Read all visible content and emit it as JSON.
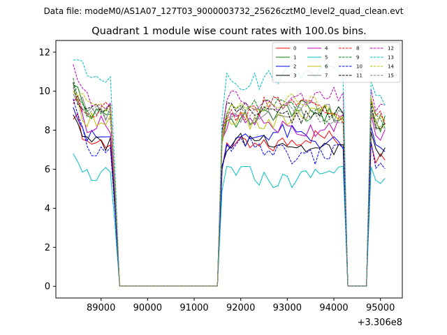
{
  "suptitle": "Data file: modeM0/AS1A07_127T03_9000003732_25626cztM0_level2_quad_clean.evt",
  "chart_data": {
    "type": "line",
    "title": "Quadrant 1 module wise count rates with 100.0s bins.",
    "xlabel": "",
    "ylabel": "",
    "x_offset_label": "+3.306e8",
    "xlim": [
      88030,
      95470
    ],
    "ylim": [
      -0.6,
      12.6
    ],
    "xticks": [
      89000,
      90000,
      91000,
      92000,
      93000,
      94000,
      95000
    ],
    "yticks": [
      0,
      2,
      4,
      6,
      8,
      10,
      12
    ],
    "grid": false,
    "legend_position": "top-right",
    "series": [
      {
        "name": "0",
        "color": "#ff0000",
        "dash": "solid",
        "base": 7.4,
        "seg1": 9.0,
        "seg3": 7.6
      },
      {
        "name": "1",
        "color": "#008000",
        "dash": "solid",
        "base": 8.8,
        "seg1": 10.6,
        "seg3": 9.2
      },
      {
        "name": "2",
        "color": "#0000ff",
        "dash": "solid",
        "base": 7.6,
        "seg1": 9.6,
        "seg3": 8.0
      },
      {
        "name": "3",
        "color": "#000000",
        "dash": "solid",
        "base": 7.3,
        "seg1": 9.0,
        "seg3": 7.7
      },
      {
        "name": "4",
        "color": "#bf00bf",
        "dash": "solid",
        "base": 8.3,
        "seg1": 9.8,
        "seg3": 8.6
      },
      {
        "name": "5",
        "color": "#00bfbf",
        "dash": "solid",
        "base": 5.7,
        "seg1": 7.2,
        "seg3": 6.0
      },
      {
        "name": "6",
        "color": "#bfbf00",
        "dash": "solid",
        "base": 8.6,
        "seg1": 9.6,
        "seg3": 9.0
      },
      {
        "name": "7",
        "color": "#808080",
        "dash": "solid",
        "base": 8.9,
        "seg1": 10.2,
        "seg3": 9.3
      },
      {
        "name": "8",
        "color": "#ff0000",
        "dash": "dashed",
        "base": 9.1,
        "seg1": 9.5,
        "seg3": 9.6
      },
      {
        "name": "9",
        "color": "#008000",
        "dash": "dashed",
        "base": 9.0,
        "seg1": 10.3,
        "seg3": 9.4
      },
      {
        "name": "10",
        "color": "#0000ff",
        "dash": "dashed",
        "base": 6.9,
        "seg1": 9.4,
        "seg3": 7.2
      },
      {
        "name": "11",
        "color": "#000000",
        "dash": "dashed",
        "base": 8.9,
        "seg1": 10.2,
        "seg3": 9.3
      },
      {
        "name": "12",
        "color": "#bf00bf",
        "dash": "dashed",
        "base": 9.5,
        "seg1": 11.4,
        "seg3": 9.8
      },
      {
        "name": "13",
        "color": "#00bfbf",
        "dash": "dashed",
        "base": 10.8,
        "seg1": 11.8,
        "seg3": 10.4
      },
      {
        "name": "14",
        "color": "#bfbf00",
        "dash": "dashed",
        "base": 9.3,
        "seg1": 10.0,
        "seg3": 9.6
      },
      {
        "name": "15",
        "color": "#808080",
        "dash": "dashed",
        "base": 9.0,
        "seg1": 10.1,
        "seg3": 9.3
      }
    ]
  }
}
